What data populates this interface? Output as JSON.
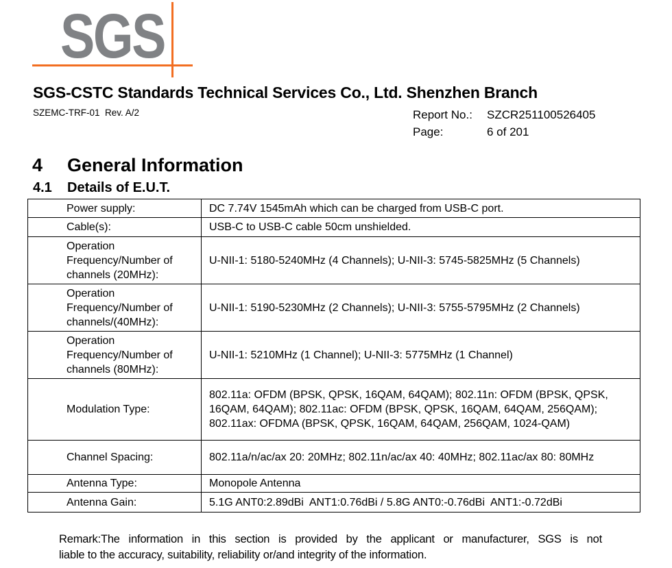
{
  "logo": {
    "text": "SGS"
  },
  "header": {
    "title": "SGS-CSTC Standards Technical Services Co., Ltd. Shenzhen Branch",
    "form_ref": "SZEMC-TRF-01  Rev. A/2",
    "report_no_label": "Report No.:",
    "report_no_value": "SZCR251100526405",
    "page_label": "Page:",
    "page_value": "6 of 201"
  },
  "section": {
    "number": "4",
    "title": "General Information"
  },
  "subsection": {
    "number": "4.1",
    "title": "Details of E.U.T."
  },
  "eut": {
    "rows": [
      {
        "label": "Power supply:",
        "value": "DC 7.74V 1545mAh which can be charged from USB-C port."
      },
      {
        "label": "Cable(s):",
        "value": "USB-C to USB-C cable 50cm unshielded."
      },
      {
        "label": "Operation Frequency/Number of channels (20MHz):",
        "value": "U-NII-1: 5180-5240MHz (4 Channels); U-NII-3: 5745-5825MHz (5 Channels)"
      },
      {
        "label": "Operation Frequency/Number of channels/(40MHz):",
        "value": "U-NII-1: 5190-5230MHz (2 Channels); U-NII-3: 5755-5795MHz (2 Channels)"
      },
      {
        "label": "Operation Frequency/Number of channels (80MHz):",
        "value": "U-NII-1: 5210MHz (1 Channel); U-NII-3: 5775MHz (1 Channel)"
      },
      {
        "label": "Modulation Type:",
        "value": "802.11a: OFDM (BPSK, QPSK, 16QAM, 64QAM); 802.11n: OFDM (BPSK, QPSK, 16QAM, 64QAM); 802.11ac: OFDM (BPSK, QPSK, 16QAM, 64QAM, 256QAM); 802.11ax: OFDMA (BPSK, QPSK, 16QAM, 64QAM, 256QAM, 1024-QAM)"
      },
      {
        "label": "Channel Spacing:",
        "value": "802.11a/n/ac/ax 20: 20MHz; 802.11n/ac/ax 40: 40MHz; 802.11ac/ax 80: 80MHz"
      },
      {
        "label": "Antenna Type:",
        "value": "Monopole Antenna"
      },
      {
        "label": "Antenna Gain:",
        "value": "5.1G ANT0:2.89dBi  ANT1:0.76dBi / 5.8G ANT0:-0.76dBi  ANT1:-0.72dBi"
      }
    ]
  },
  "remark": {
    "lines": [
      "Remark:The information in this section is provided by the applicant or manufacturer, SGS is not",
      "liable to the accuracy, suitability, reliability or/and integrity of the information."
    ]
  },
  "colors": {
    "accent_orange": "#f26e21",
    "logo_gray": "#808285"
  }
}
